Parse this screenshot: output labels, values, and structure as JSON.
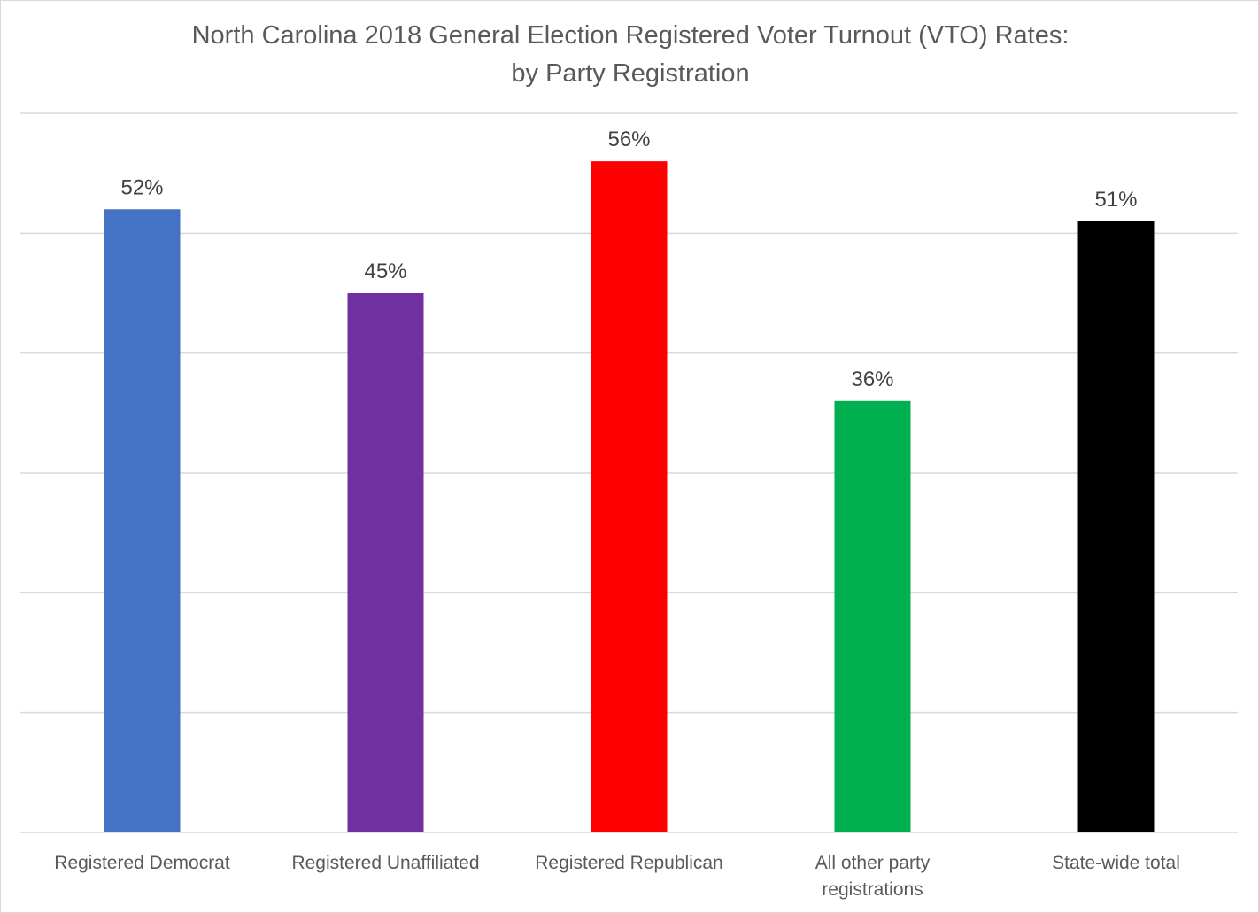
{
  "chart_data": {
    "type": "bar",
    "title_lines": [
      "North Carolina 2018 General Election Registered Voter Turnout (VTO) Rates:",
      "by Party Registration"
    ],
    "categories": [
      [
        "Registered Democrat"
      ],
      [
        "Registered Unaffiliated"
      ],
      [
        "Registered Republican"
      ],
      [
        "All other party",
        "registrations"
      ],
      [
        "State-wide total"
      ]
    ],
    "values": [
      0.52,
      0.45,
      0.56,
      0.36,
      0.51
    ],
    "labels": [
      "52%",
      "45%",
      "56%",
      "36%",
      "51%"
    ],
    "colors": [
      "#4472c4",
      "#7030a0",
      "#ff0000",
      "#00b050",
      "#000000"
    ],
    "ylim": [
      0,
      0.6
    ],
    "gridline_step": 0.1,
    "xlabel": "",
    "ylabel": "",
    "legend": "none"
  }
}
